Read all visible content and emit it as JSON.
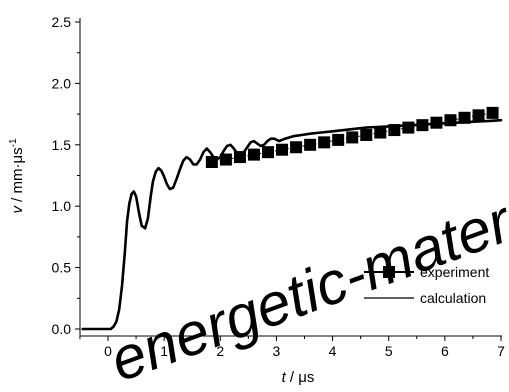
{
  "colors": {
    "axis": "#000000",
    "experiment": "#000000",
    "calculation": "#000000",
    "watermark": "#e2e2e2",
    "background": "#ffffff"
  },
  "watermark": {
    "text": "energetic-mater"
  },
  "chart_data": {
    "type": "line",
    "title": "",
    "xlabel": {
      "var": "t",
      "unit": " / μs"
    },
    "ylabel": {
      "var": "v",
      "unit": " / mm·μs",
      "exp": "-1"
    },
    "xlim": [
      -0.5,
      7
    ],
    "ylim": [
      -0.05,
      2.5
    ],
    "xticks": [
      0,
      1,
      2,
      3,
      4,
      5,
      6,
      7
    ],
    "xtick_labels": [
      "0",
      "1",
      "2",
      "3",
      "4",
      "5",
      "6",
      "7"
    ],
    "yticks": [
      0.0,
      0.5,
      1.0,
      1.5,
      2.0,
      2.5
    ],
    "ytick_labels": [
      "0.0",
      "0.5",
      "1.0",
      "1.5",
      "2.0",
      "2.5"
    ],
    "grid": false,
    "legend_position": "bottom-right",
    "series": [
      {
        "name": "experiment",
        "style": "square-markers-with-line",
        "x": [
          1.85,
          2.1,
          2.35,
          2.6,
          2.85,
          3.1,
          3.35,
          3.6,
          3.85,
          4.1,
          4.35,
          4.6,
          4.85,
          5.1,
          5.35,
          5.6,
          5.85,
          6.1,
          6.35,
          6.6,
          6.85
        ],
        "y": [
          1.36,
          1.38,
          1.4,
          1.42,
          1.44,
          1.46,
          1.48,
          1.5,
          1.52,
          1.54,
          1.56,
          1.58,
          1.6,
          1.62,
          1.64,
          1.66,
          1.68,
          1.7,
          1.72,
          1.74,
          1.76
        ]
      },
      {
        "name": "calculation",
        "style": "line",
        "x": [
          -0.45,
          -0.3,
          -0.1,
          0.05,
          0.1,
          0.15,
          0.2,
          0.25,
          0.3,
          0.34,
          0.38,
          0.42,
          0.46,
          0.5,
          0.55,
          0.6,
          0.66,
          0.71,
          0.76,
          0.8,
          0.85,
          0.9,
          0.95,
          1.0,
          1.05,
          1.1,
          1.16,
          1.22,
          1.28,
          1.34,
          1.4,
          1.46,
          1.52,
          1.58,
          1.64,
          1.7,
          1.76,
          1.82,
          1.88,
          1.94,
          2.0,
          2.06,
          2.12,
          2.18,
          2.24,
          2.3,
          2.36,
          2.42,
          2.48,
          2.54,
          2.6,
          2.66,
          2.72,
          2.78,
          2.84,
          2.9,
          2.96,
          3.05,
          3.15,
          3.3,
          3.45,
          3.6,
          3.8,
          4.0,
          4.2,
          4.4,
          4.6,
          4.8,
          5.0,
          5.2,
          5.4,
          5.6,
          5.8,
          6.0,
          6.2,
          6.4,
          6.6,
          6.8,
          7.0
        ],
        "y": [
          0.0,
          0.0,
          0.0,
          0.0,
          0.02,
          0.06,
          0.16,
          0.35,
          0.62,
          0.88,
          1.02,
          1.1,
          1.12,
          1.08,
          0.95,
          0.84,
          0.82,
          0.9,
          1.08,
          1.2,
          1.28,
          1.31,
          1.29,
          1.24,
          1.18,
          1.14,
          1.15,
          1.22,
          1.3,
          1.37,
          1.4,
          1.38,
          1.34,
          1.34,
          1.38,
          1.44,
          1.47,
          1.44,
          1.4,
          1.38,
          1.4,
          1.45,
          1.49,
          1.5,
          1.47,
          1.43,
          1.42,
          1.44,
          1.48,
          1.52,
          1.53,
          1.51,
          1.49,
          1.5,
          1.53,
          1.55,
          1.55,
          1.53,
          1.55,
          1.57,
          1.58,
          1.59,
          1.6,
          1.61,
          1.62,
          1.63,
          1.64,
          1.645,
          1.65,
          1.655,
          1.66,
          1.665,
          1.67,
          1.675,
          1.68,
          1.685,
          1.69,
          1.695,
          1.7
        ]
      }
    ]
  }
}
